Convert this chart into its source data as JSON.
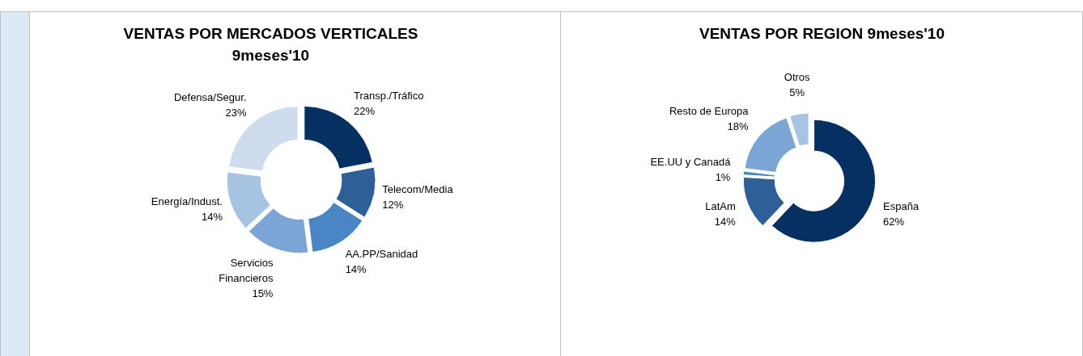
{
  "chart_data": [
    {
      "type": "donut",
      "title": "VENTAS POR MERCADOS VERTICALES\n9meses'10",
      "categories": [
        "Transp./Tráfico",
        "Telecom/Media",
        "AA.PP/Sanidad",
        "Servicios\nFinancieros",
        "Energía/Indust.",
        "Defensa/Segur."
      ],
      "values": [
        22,
        12,
        14,
        15,
        14,
        23
      ],
      "value_labels": [
        "22%",
        "12%",
        "14%",
        "15%",
        "14%",
        "23%"
      ],
      "colors": [
        "#06305f",
        "#2f5f97",
        "#4a86c5",
        "#7aa5d4",
        "#a7c3e2",
        "#cfdcee"
      ],
      "legend": false
    },
    {
      "type": "donut",
      "title": "VENTAS POR REGION 9meses'10",
      "categories": [
        "España",
        "LatAm",
        "EE.UU y Canadá",
        "Resto de Europa",
        "Otros"
      ],
      "values": [
        62,
        14,
        1,
        18,
        5
      ],
      "value_labels": [
        "62%",
        "14%",
        "1%",
        "18%",
        "5%"
      ],
      "colors": [
        "#06305f",
        "#2f5f97",
        "#4a86c5",
        "#7aa5d4",
        "#a7c3e2"
      ],
      "legend": false
    }
  ]
}
